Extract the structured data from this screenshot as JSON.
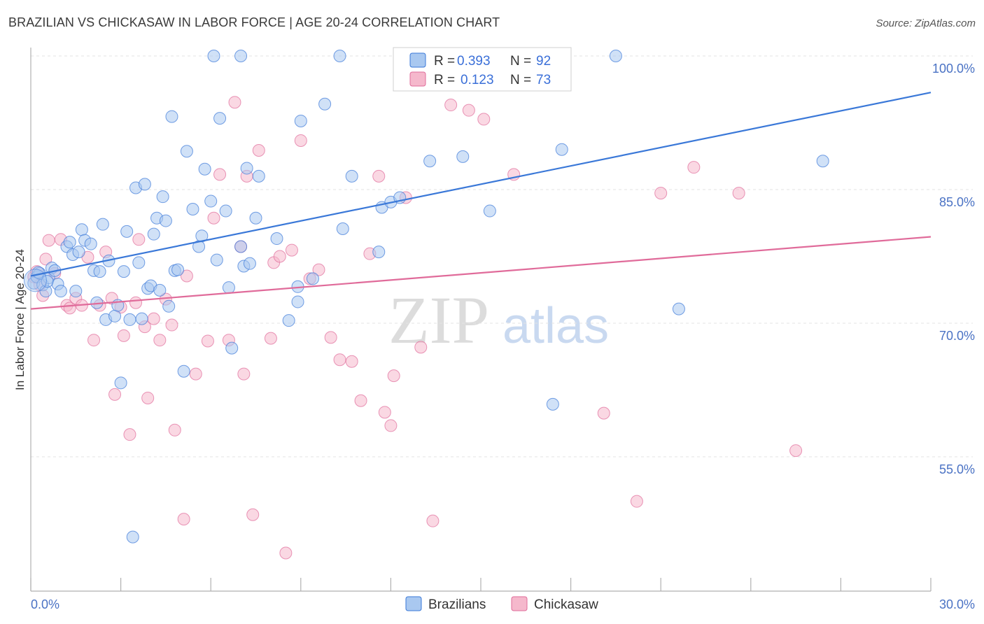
{
  "title": "BRAZILIAN VS CHICKASAW IN LABOR FORCE | AGE 20-24 CORRELATION CHART",
  "source": "Source: ZipAtlas.com",
  "watermark": {
    "zip": "ZIP",
    "atlas": "atlas"
  },
  "legend": {
    "brazilians": {
      "r_label": "R =",
      "r_value": "0.393",
      "n_label": "N =",
      "n_value": "92"
    },
    "chickasaw": {
      "r_label": "R =",
      "r_value": "0.123",
      "n_label": "N =",
      "n_value": "73"
    }
  },
  "chart_data": {
    "type": "scatter",
    "title": "BRAZILIAN VS CHICKASAW IN LABOR FORCE | AGE 20-24 CORRELATION CHART",
    "xlabel": "",
    "ylabel": "In Labor Force | Age 20-24",
    "xlim": [
      0,
      30
    ],
    "ylim": [
      40,
      102
    ],
    "x_tick_labels": [
      "0.0%",
      "30.0%"
    ],
    "y_ticks": [
      55,
      70,
      85,
      100
    ],
    "y_tick_labels": [
      "55.0%",
      "70.0%",
      "85.0%",
      "100.0%"
    ],
    "grid": true,
    "legend_position": "top-center",
    "colors": {
      "brazilians": "#3a78d8",
      "chickasaw": "#e06b9a",
      "brazilians_fill": "#a9c8f0",
      "chickasaw_fill": "#f5b8cc"
    },
    "series": [
      {
        "name": "Brazilians",
        "trend": {
          "x": [
            0,
            30
          ],
          "y": [
            75.3,
            95.9
          ]
        },
        "points": [
          [
            0.1,
            74.5
          ],
          [
            0.2,
            75.2
          ],
          [
            0.3,
            75.6
          ],
          [
            0.4,
            74.3
          ],
          [
            0.5,
            73.6
          ],
          [
            0.6,
            75.1
          ],
          [
            0.7,
            76.2
          ],
          [
            0.8,
            75.9
          ],
          [
            0.9,
            74.4
          ],
          [
            1.0,
            73.6
          ],
          [
            1.2,
            78.6
          ],
          [
            1.3,
            79.1
          ],
          [
            1.5,
            73.6
          ],
          [
            1.7,
            80.5
          ],
          [
            1.8,
            79.3
          ],
          [
            2.0,
            78.9
          ],
          [
            2.1,
            75.9
          ],
          [
            2.2,
            72.3
          ],
          [
            2.4,
            81.1
          ],
          [
            2.5,
            70.4
          ],
          [
            2.6,
            77.0
          ],
          [
            2.8,
            70.8
          ],
          [
            2.9,
            72.0
          ],
          [
            3.1,
            75.8
          ],
          [
            3.2,
            80.3
          ],
          [
            3.3,
            70.4
          ],
          [
            3.0,
            63.3
          ],
          [
            3.5,
            85.2
          ],
          [
            3.6,
            76.8
          ],
          [
            3.8,
            85.6
          ],
          [
            3.9,
            73.9
          ],
          [
            4.0,
            74.2
          ],
          [
            4.1,
            80.0
          ],
          [
            4.2,
            81.8
          ],
          [
            4.3,
            73.7
          ],
          [
            4.4,
            84.2
          ],
          [
            4.5,
            81.5
          ],
          [
            4.6,
            71.9
          ],
          [
            4.8,
            75.9
          ],
          [
            4.9,
            76.0
          ],
          [
            5.1,
            64.6
          ],
          [
            5.2,
            89.3
          ],
          [
            5.4,
            82.8
          ],
          [
            5.6,
            78.6
          ],
          [
            4.7,
            93.2
          ],
          [
            5.7,
            79.8
          ],
          [
            5.8,
            87.3
          ],
          [
            6.0,
            83.7
          ],
          [
            6.2,
            77.1
          ],
          [
            6.3,
            93.0
          ],
          [
            6.1,
            100.0
          ],
          [
            6.5,
            82.6
          ],
          [
            6.6,
            74.0
          ],
          [
            6.7,
            67.2
          ],
          [
            7.0,
            78.6
          ],
          [
            7.1,
            76.4
          ],
          [
            7.2,
            87.4
          ],
          [
            7.3,
            76.7
          ],
          [
            7.5,
            81.8
          ],
          [
            7.6,
            86.5
          ],
          [
            7.0,
            100.0
          ],
          [
            8.2,
            79.5
          ],
          [
            8.6,
            70.3
          ],
          [
            8.9,
            72.4
          ],
          [
            8.9,
            74.1
          ],
          [
            9.0,
            92.7
          ],
          [
            9.4,
            75.0
          ],
          [
            9.8,
            94.6
          ],
          [
            10.4,
            80.6
          ],
          [
            10.3,
            100.0
          ],
          [
            10.7,
            86.5
          ],
          [
            11.7,
            83.0
          ],
          [
            11.6,
            78.0
          ],
          [
            12.0,
            83.6
          ],
          [
            12.3,
            84.1
          ],
          [
            13.3,
            88.2
          ],
          [
            13.0,
            100.0
          ],
          [
            14.4,
            88.7
          ],
          [
            15.3,
            82.6
          ],
          [
            15.8,
            100.0
          ],
          [
            17.4,
            60.9
          ],
          [
            17.7,
            89.5
          ],
          [
            19.5,
            100.0
          ],
          [
            21.6,
            71.6
          ],
          [
            26.4,
            88.2
          ],
          [
            0.25,
            75.7
          ],
          [
            0.55,
            74.7
          ],
          [
            1.4,
            77.7
          ],
          [
            1.6,
            78.0
          ],
          [
            2.3,
            75.8
          ],
          [
            3.4,
            46.0
          ],
          [
            3.7,
            70.5
          ]
        ]
      },
      {
        "name": "Chickasaw",
        "trend": {
          "x": [
            0,
            30
          ],
          "y": [
            71.6,
            79.7
          ]
        },
        "points": [
          [
            0.1,
            75.2
          ],
          [
            0.2,
            75.8
          ],
          [
            0.3,
            74.3
          ],
          [
            0.4,
            73.1
          ],
          [
            0.5,
            77.2
          ],
          [
            0.6,
            79.3
          ],
          [
            0.8,
            75.6
          ],
          [
            1.0,
            79.4
          ],
          [
            1.2,
            72.0
          ],
          [
            1.3,
            71.7
          ],
          [
            1.5,
            72.8
          ],
          [
            1.7,
            72.0
          ],
          [
            1.9,
            77.4
          ],
          [
            2.1,
            68.1
          ],
          [
            2.3,
            72.0
          ],
          [
            2.5,
            78.0
          ],
          [
            2.7,
            72.8
          ],
          [
            2.8,
            62.0
          ],
          [
            3.0,
            71.8
          ],
          [
            3.1,
            68.6
          ],
          [
            3.3,
            57.5
          ],
          [
            3.5,
            72.3
          ],
          [
            3.6,
            79.4
          ],
          [
            3.8,
            69.6
          ],
          [
            3.9,
            61.6
          ],
          [
            4.1,
            70.5
          ],
          [
            4.3,
            68.1
          ],
          [
            4.5,
            72.7
          ],
          [
            4.7,
            69.8
          ],
          [
            4.8,
            58.0
          ],
          [
            5.1,
            48.0
          ],
          [
            5.2,
            75.3
          ],
          [
            5.5,
            64.3
          ],
          [
            5.9,
            68.0
          ],
          [
            6.1,
            81.8
          ],
          [
            6.3,
            86.7
          ],
          [
            6.6,
            68.1
          ],
          [
            6.8,
            94.8
          ],
          [
            7.0,
            78.6
          ],
          [
            7.1,
            64.3
          ],
          [
            7.2,
            86.5
          ],
          [
            7.4,
            48.5
          ],
          [
            7.6,
            89.4
          ],
          [
            8.0,
            68.3
          ],
          [
            8.1,
            76.8
          ],
          [
            8.3,
            77.5
          ],
          [
            8.5,
            44.2
          ],
          [
            8.7,
            78.2
          ],
          [
            9.0,
            90.5
          ],
          [
            9.3,
            75.0
          ],
          [
            9.6,
            76.0
          ],
          [
            10.0,
            68.4
          ],
          [
            10.3,
            65.9
          ],
          [
            10.7,
            65.7
          ],
          [
            11.0,
            61.3
          ],
          [
            11.3,
            77.8
          ],
          [
            11.6,
            86.5
          ],
          [
            11.8,
            60.0
          ],
          [
            12.0,
            58.5
          ],
          [
            12.1,
            64.1
          ],
          [
            12.5,
            84.1
          ],
          [
            13.0,
            67.3
          ],
          [
            13.4,
            47.8
          ],
          [
            14.0,
            94.5
          ],
          [
            14.6,
            93.9
          ],
          [
            15.1,
            92.9
          ],
          [
            16.1,
            86.7
          ],
          [
            19.1,
            59.9
          ],
          [
            20.2,
            50.0
          ],
          [
            21.0,
            84.6
          ],
          [
            22.1,
            87.5
          ],
          [
            23.6,
            84.6
          ],
          [
            25.5,
            55.7
          ]
        ]
      }
    ]
  },
  "bottom_legend": {
    "brazilians": "Brazilians",
    "chickasaw": "Chickasaw"
  }
}
